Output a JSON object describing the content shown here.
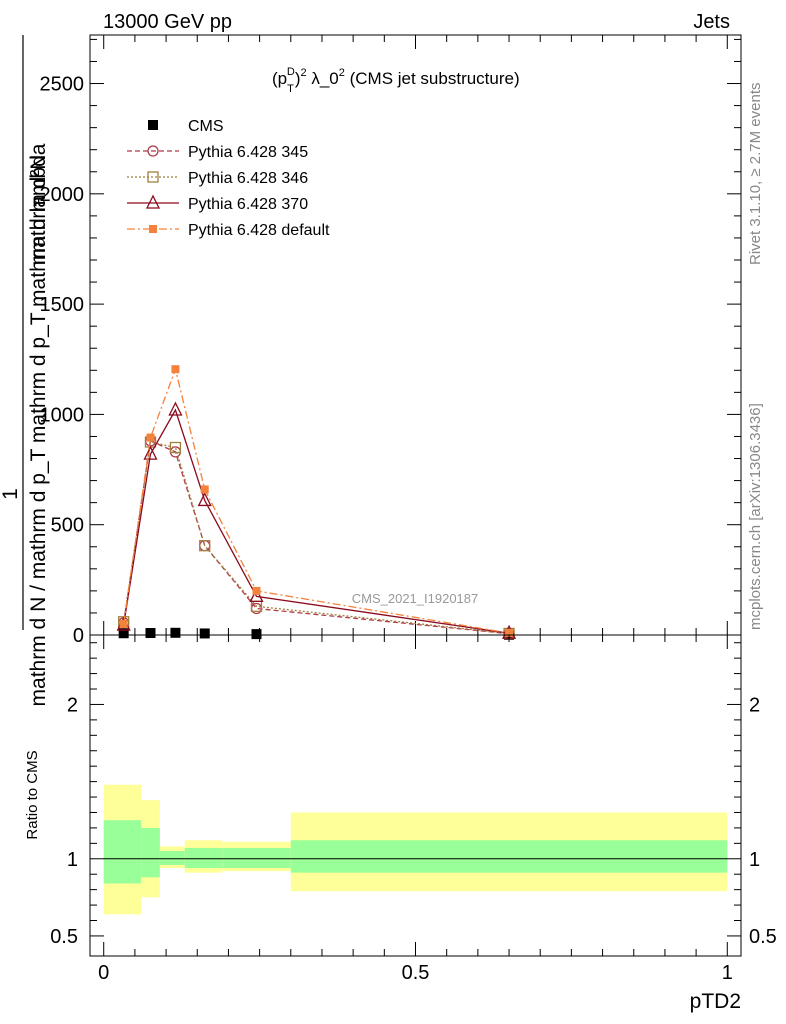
{
  "header": {
    "left": "13000 GeV pp",
    "right": "Jets"
  },
  "side": {
    "rivet": "Rivet 3.1.10, ≥ 2.7M events",
    "mcplots": "mcplots.cern.ch [arXiv:1306.3436]"
  },
  "watermark": "CMS_2021_I1920187",
  "colors": {
    "cms": "#000000",
    "p345": "#b03a48",
    "p346": "#a08040",
    "p370": "#8b0a1e",
    "pdef": "#f5823c",
    "band_outer": "#ffff99",
    "band_inner": "#99ff99"
  },
  "chart_data": [
    {
      "type": "line",
      "title": "(p_T^D)^2 λ_0^2 (CMS jet substructure)",
      "title_parts": {
        "a": "(p",
        "sup": "D",
        "sub": "T",
        "b": ")",
        "pow": "2",
        "c": " λ_0",
        "pow2": "2",
        "d": " (CMS jet substructure)"
      },
      "ylabel": {
        "frac_top": "1",
        "denominator": "mathrm d N / mathrm d p_T mathrm d p_T mathrm d lambda",
        "numerator": "mathrm d²N"
      },
      "xlim": [
        -0.022,
        1.022
      ],
      "ylim": [
        0,
        2720
      ],
      "yticks": [
        0,
        500,
        1000,
        1500,
        2000,
        2500
      ],
      "ytick_labels": [
        "0",
        "500",
        "1000",
        "1500",
        "2000",
        "2500"
      ],
      "legend_position": "top-left",
      "series": [
        {
          "name": "CMS",
          "x": [
            0.032,
            0.075,
            0.115,
            0.162,
            0.245,
            0.65
          ],
          "y": [
            8,
            9,
            10,
            7,
            4,
            1
          ],
          "marker": "square-filled"
        },
        {
          "name": "Pythia 6.428 345",
          "x": [
            0.032,
            0.075,
            0.115,
            0.162,
            0.245,
            0.65
          ],
          "y": [
            55,
            880,
            830,
            405,
            120,
            6
          ],
          "marker": "circle-open",
          "dash": "5,3"
        },
        {
          "name": "Pythia 6.428 346",
          "x": [
            0.032,
            0.075,
            0.115,
            0.162,
            0.245,
            0.65
          ],
          "y": [
            60,
            875,
            850,
            405,
            130,
            7
          ],
          "marker": "square-open",
          "dash": "2,2"
        },
        {
          "name": "Pythia 6.428 370",
          "x": [
            0.032,
            0.075,
            0.115,
            0.162,
            0.245,
            0.65
          ],
          "y": [
            45,
            820,
            1020,
            610,
            175,
            8
          ],
          "marker": "triangle-open",
          "dash": ""
        },
        {
          "name": "Pythia 6.428 default",
          "x": [
            0.032,
            0.075,
            0.115,
            0.162,
            0.245,
            0.65
          ],
          "y": [
            50,
            895,
            1205,
            660,
            200,
            9
          ],
          "marker": "square-filled-small",
          "dash": "8,3,2,3"
        }
      ]
    },
    {
      "type": "area",
      "ylabel": "Ratio to CMS",
      "xlabel": "pTD2",
      "xlim": [
        -0.022,
        1.022
      ],
      "ylim": [
        0.37,
        2.45
      ],
      "yticks": [
        0.5,
        1,
        2
      ],
      "ytick_labels": [
        "0.5",
        "1",
        "2"
      ],
      "xticks": [
        0,
        0.5,
        1
      ],
      "xtick_labels": [
        "0",
        "0.5",
        "1"
      ],
      "bins": [
        {
          "x0": 0.0,
          "x1": 0.06,
          "inner_lo": 0.84,
          "inner_hi": 1.25,
          "outer_lo": 0.64,
          "outer_hi": 1.48
        },
        {
          "x0": 0.06,
          "x1": 0.09,
          "inner_lo": 0.88,
          "inner_hi": 1.2,
          "outer_lo": 0.75,
          "outer_hi": 1.38
        },
        {
          "x0": 0.09,
          "x1": 0.13,
          "inner_lo": 0.96,
          "inner_hi": 1.05,
          "outer_lo": 0.94,
          "outer_hi": 1.08
        },
        {
          "x0": 0.13,
          "x1": 0.19,
          "inner_lo": 0.94,
          "inner_hi": 1.07,
          "outer_lo": 0.91,
          "outer_hi": 1.12
        },
        {
          "x0": 0.19,
          "x1": 0.3,
          "inner_lo": 0.94,
          "inner_hi": 1.07,
          "outer_lo": 0.92,
          "outer_hi": 1.11
        },
        {
          "x0": 0.3,
          "x1": 1.0,
          "inner_lo": 0.91,
          "inner_hi": 1.12,
          "outer_lo": 0.79,
          "outer_hi": 1.3
        }
      ],
      "reference_line": 1
    }
  ]
}
